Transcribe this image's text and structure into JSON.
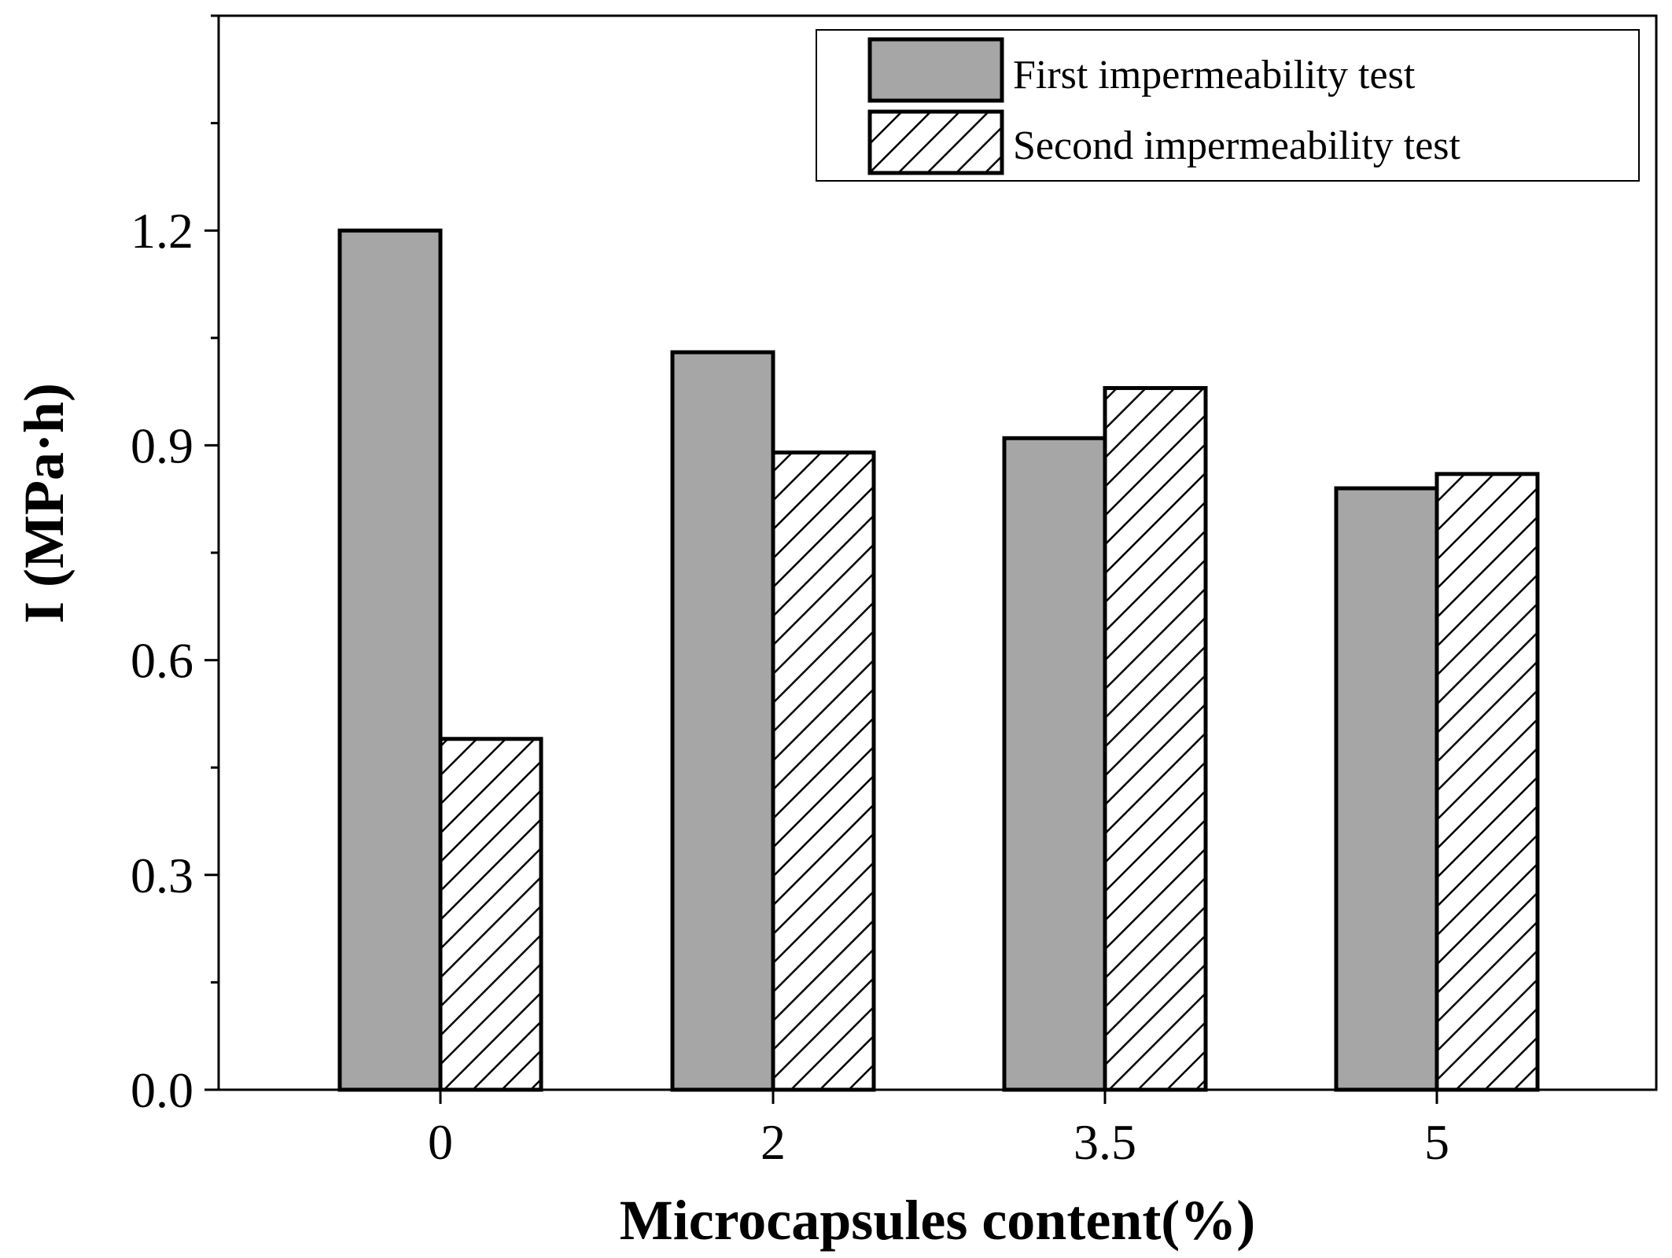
{
  "chart_data": {
    "type": "bar",
    "xlabel": "Microcapsules content(%)",
    "ylabel": "I (MPa·h)",
    "categories": [
      "0",
      "2",
      "3.5",
      "5"
    ],
    "series": [
      {
        "name": "First impermeability test",
        "values": [
          1.2,
          1.03,
          0.91,
          0.84
        ],
        "fill": "#a6a6a6",
        "pattern": "solid"
      },
      {
        "name": "Second impermeability test",
        "values": [
          0.49,
          0.89,
          0.98,
          0.86
        ],
        "fill": "#ffffff",
        "pattern": "diagonal-hatch"
      }
    ],
    "ylim": [
      0,
      1.5
    ],
    "yticks": [
      0.0,
      0.3,
      0.6,
      0.9,
      1.2
    ],
    "ytick_labels": [
      "0.0",
      "0.3",
      "0.6",
      "0.9",
      "1.2"
    ],
    "grid": false,
    "legend_position": "top-right"
  }
}
